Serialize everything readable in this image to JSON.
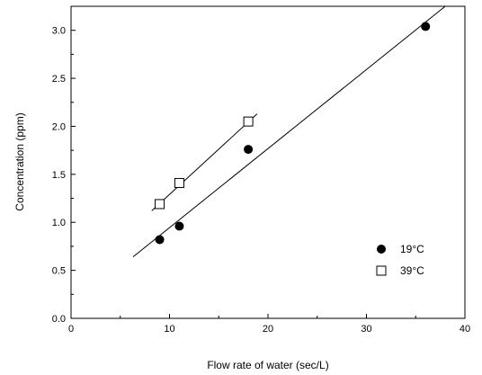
{
  "chart_data": {
    "type": "scatter",
    "title": "",
    "xlabel": "Flow rate of water (sec/L)",
    "ylabel": "Concentration (ppm)",
    "xlim": [
      0,
      40
    ],
    "ylim": [
      0.0,
      3.25
    ],
    "xticks": [
      0,
      10,
      20,
      30,
      40
    ],
    "xtick_labels": [
      "0",
      "10",
      "20",
      "30",
      "40"
    ],
    "yticks": [
      0.0,
      0.5,
      1.0,
      1.5,
      2.0,
      2.5,
      3.0
    ],
    "ytick_labels": [
      "0.0",
      "0.5",
      "1.0",
      "1.5",
      "2.0",
      "2.5",
      "3.0"
    ],
    "grid": false,
    "legend": "right",
    "series": [
      {
        "name": "19°C",
        "marker": "filled-circle",
        "color": "#000000",
        "x": [
          9,
          11,
          18,
          36
        ],
        "y": [
          0.82,
          0.96,
          1.76,
          3.04
        ],
        "fit_line": {
          "x": [
            6.3,
            38.0
          ],
          "y": [
            0.64,
            3.25
          ]
        }
      },
      {
        "name": "39°C",
        "marker": "open-square",
        "color": "#000000",
        "x": [
          9,
          11,
          18
        ],
        "y": [
          1.19,
          1.41,
          2.05
        ],
        "fit_line": {
          "x": [
            8.2,
            18.9
          ],
          "y": [
            1.12,
            2.13
          ]
        }
      }
    ]
  }
}
